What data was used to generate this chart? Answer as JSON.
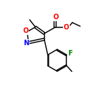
{
  "background_color": "#ffffff",
  "bond_color": "#000000",
  "atom_colors": {
    "O": "#ff0000",
    "N": "#0000ff",
    "F": "#008000",
    "C": "#000000"
  },
  "figsize": [
    1.52,
    1.52
  ],
  "dpi": 100
}
